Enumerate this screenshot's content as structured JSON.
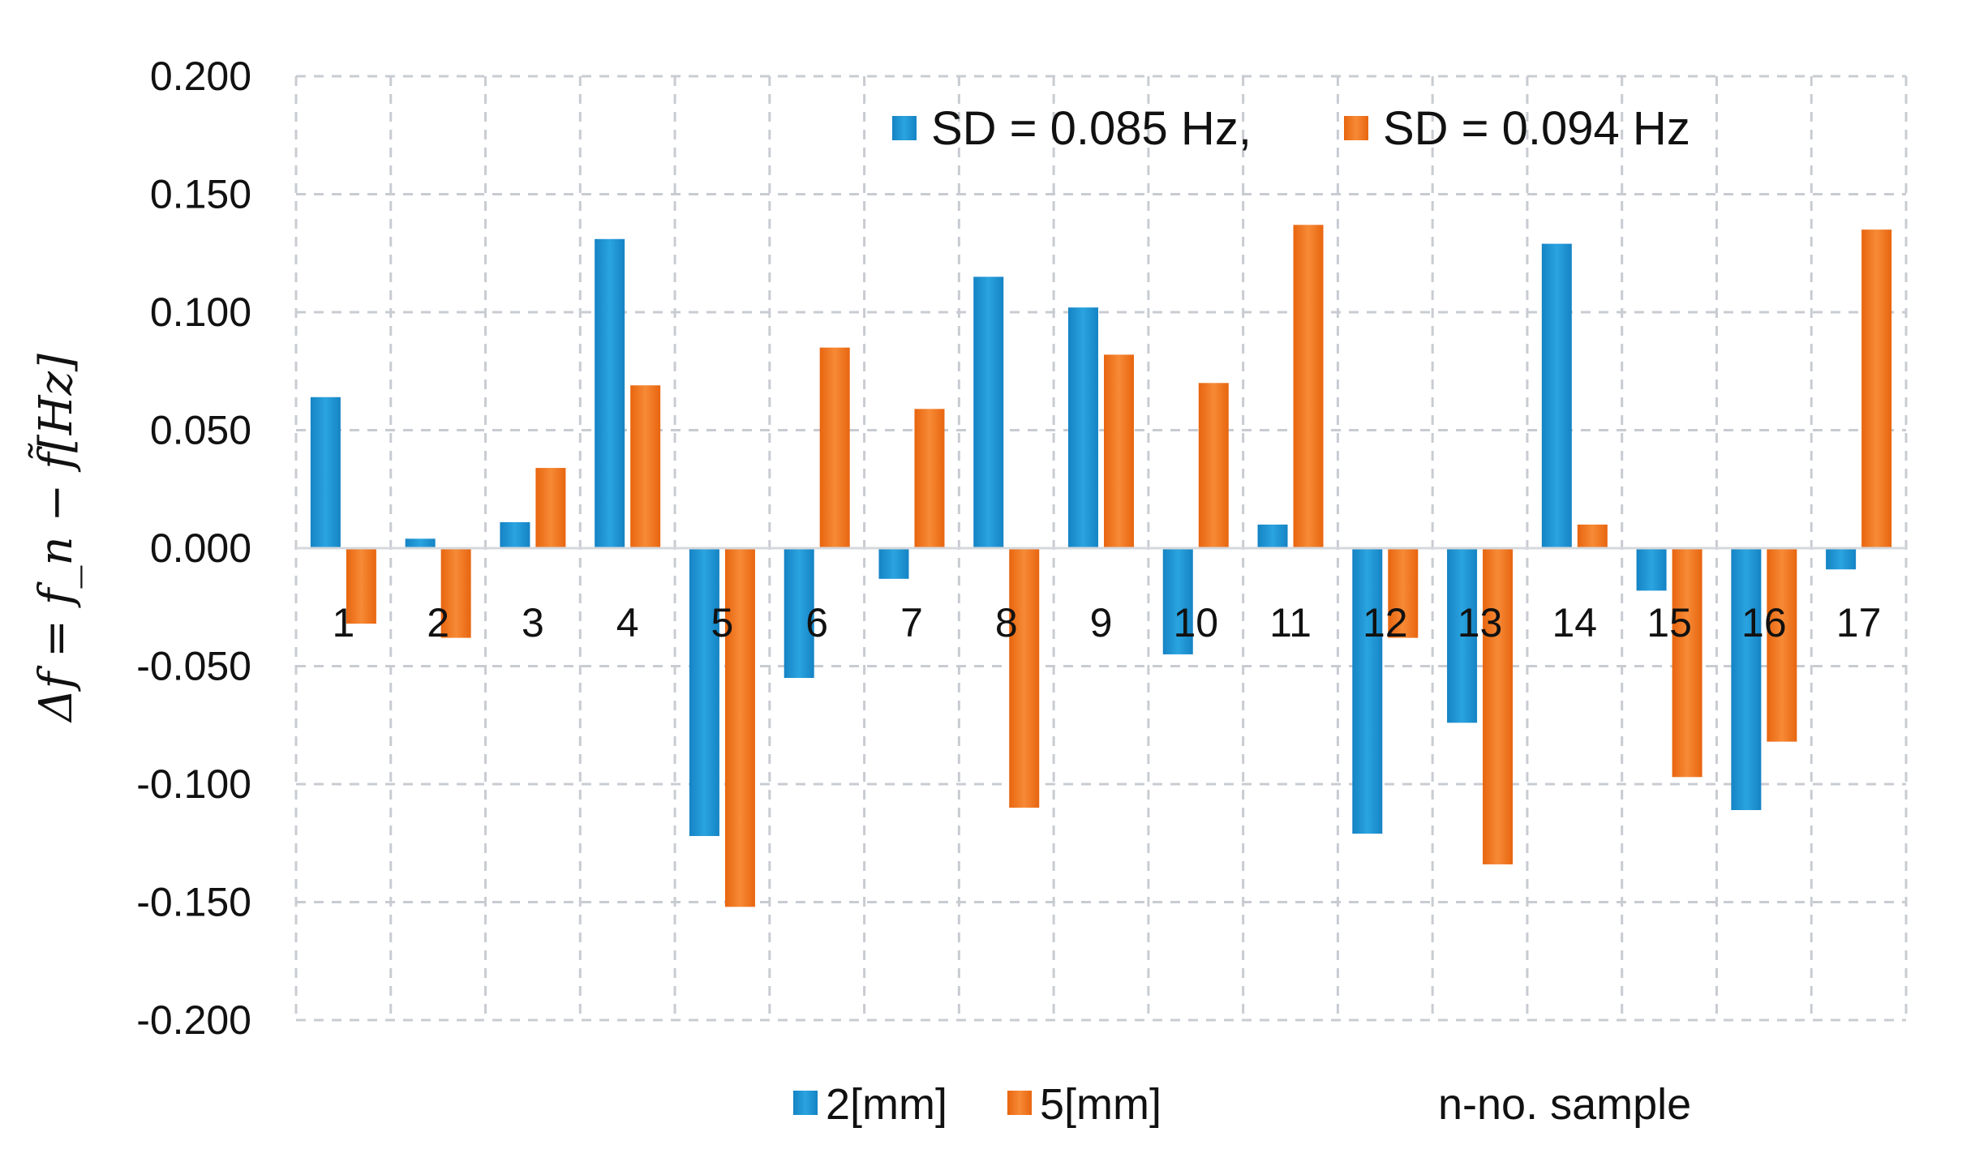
{
  "chart_data": {
    "type": "bar",
    "ylabel": "Δf = f_n − f̃[Hz]",
    "xlabel": "n-no. sample",
    "ylim": [
      -0.2,
      0.2
    ],
    "y_ticks": [
      "0.200",
      "0.150",
      "0.100",
      "0.050",
      "0.000",
      "-0.050",
      "-0.100",
      "-0.150",
      "-0.200"
    ],
    "y_tick_values": [
      0.2,
      0.15,
      0.1,
      0.05,
      0.0,
      -0.05,
      -0.1,
      -0.15,
      -0.2
    ],
    "grid": true,
    "categories": [
      "1",
      "2",
      "3",
      "4",
      "5",
      "6",
      "7",
      "8",
      "9",
      "10",
      "11",
      "12",
      "13",
      "14",
      "15",
      "16",
      "17"
    ],
    "series": [
      {
        "name": "2[mm]",
        "color": "#1f9bd7",
        "values": [
          0.064,
          0.004,
          0.011,
          0.131,
          -0.122,
          -0.055,
          -0.013,
          0.115,
          0.102,
          -0.045,
          0.01,
          -0.121,
          -0.074,
          0.129,
          -0.018,
          -0.111,
          -0.009
        ]
      },
      {
        "name": "5[mm]",
        "color": "#f07a23",
        "values": [
          -0.032,
          -0.038,
          0.034,
          0.069,
          -0.152,
          0.085,
          0.059,
          -0.11,
          0.082,
          0.07,
          0.137,
          -0.038,
          -0.134,
          0.01,
          -0.097,
          -0.082,
          0.135
        ]
      }
    ],
    "annotation_legend": [
      {
        "label": "SD = 0.085 Hz,",
        "color": "#1f9bd7"
      },
      {
        "label": "SD = 0.094 Hz",
        "color": "#f07a23"
      }
    ],
    "legend_placement": "bottom-left"
  }
}
